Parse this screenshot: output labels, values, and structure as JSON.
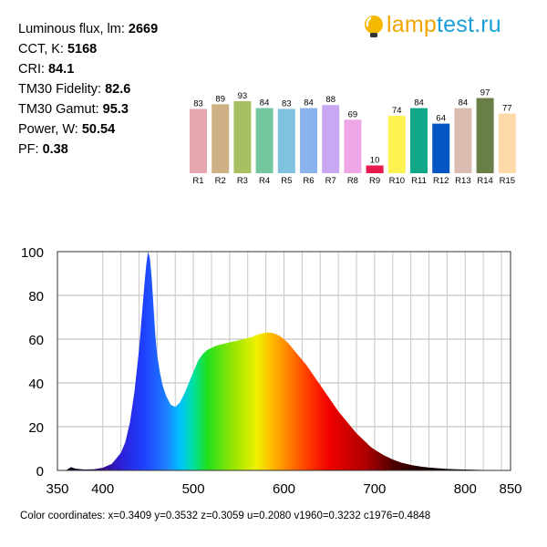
{
  "specs": [
    {
      "label": "Luminous flux, lm:",
      "value": "2669"
    },
    {
      "label": "CCT, K:",
      "value": "5168"
    },
    {
      "label": "CRI:",
      "value": "84.1"
    },
    {
      "label": "TM30 Fidelity:",
      "value": "82.6"
    },
    {
      "label": "TM30 Gamut:",
      "value": "95.3"
    },
    {
      "label": "Power, W:",
      "value": "50.54"
    },
    {
      "label": "PF:",
      "value": "0.38"
    }
  ],
  "logo": {
    "part1": "lamp",
    "part2": "test.ru",
    "icon": "lightbulb-icon",
    "colors": {
      "bulb": "#f5b800",
      "part1": "#f0a500",
      "part2": "#1a9fd9"
    }
  },
  "chart_data": [
    {
      "type": "bar",
      "categories": [
        "R1",
        "R2",
        "R3",
        "R4",
        "R5",
        "R6",
        "R7",
        "R8",
        "R9",
        "R10",
        "R11",
        "R12",
        "R13",
        "R14",
        "R15"
      ],
      "values": [
        83,
        89,
        93,
        84,
        83,
        84,
        88,
        69,
        10,
        74,
        84,
        64,
        84,
        97,
        77
      ],
      "colors": [
        "#e6a6ae",
        "#cdb185",
        "#a8c062",
        "#72c79e",
        "#7ec2e0",
        "#8ab2ec",
        "#c9a8f3",
        "#eea6e6",
        "#e8194c",
        "#fdf350",
        "#0fa98a",
        "#0557c6",
        "#dbbcb0",
        "#6a7f48",
        "#fddaa8"
      ],
      "ylim": [
        0,
        100
      ],
      "data_labels": true
    },
    {
      "type": "area",
      "title": "",
      "xlabel": "",
      "ylabel": "",
      "xlim": [
        350,
        850
      ],
      "ylim": [
        0,
        100
      ],
      "x_ticks": [
        350,
        400,
        500,
        600,
        700,
        800,
        850
      ],
      "y_ticks": [
        0,
        20,
        40,
        60,
        80,
        100
      ],
      "grid": true,
      "fill": "visible-spectrum gradient",
      "x": [
        350,
        355,
        360,
        365,
        370,
        380,
        390,
        400,
        410,
        420,
        425,
        430,
        435,
        440,
        443,
        446,
        448,
        450,
        452,
        454,
        456,
        458,
        460,
        463,
        466,
        470,
        475,
        480,
        485,
        490,
        495,
        500,
        505,
        510,
        515,
        520,
        525,
        530,
        535,
        540,
        545,
        550,
        555,
        560,
        565,
        570,
        575,
        580,
        585,
        590,
        595,
        600,
        605,
        610,
        615,
        620,
        625,
        630,
        635,
        640,
        645,
        650,
        655,
        660,
        665,
        670,
        675,
        680,
        685,
        690,
        695,
        700,
        710,
        720,
        730,
        740,
        750,
        760,
        770,
        780,
        790,
        800,
        810,
        820,
        830,
        840,
        850
      ],
      "y": [
        0,
        0,
        0.2,
        1.5,
        0.8,
        0.4,
        0.5,
        1.2,
        3,
        8,
        13,
        22,
        36,
        55,
        70,
        85,
        94,
        100,
        97,
        88,
        75,
        62,
        53,
        45,
        39,
        34,
        30,
        29,
        31,
        35,
        40,
        45,
        50,
        53,
        55,
        56,
        57,
        57.5,
        58,
        58.5,
        59,
        59.5,
        60,
        60.5,
        61,
        62,
        62.5,
        63,
        63,
        62.5,
        61.5,
        60,
        58,
        55.5,
        53,
        50.5,
        48,
        45,
        42,
        39,
        36,
        33,
        30,
        27,
        24.5,
        22,
        19.5,
        17,
        15,
        13,
        11,
        9.5,
        7,
        5,
        3.5,
        2.5,
        1.8,
        1.3,
        1,
        0.7,
        0.5,
        0.4,
        0.3,
        0.2,
        0.1,
        0,
        0
      ]
    }
  ],
  "color_coordinates": "Color coordinates: x=0.3409 y=0.3532 z=0.3059 u=0.2080 v1960=0.3232 c1976=0.4848"
}
